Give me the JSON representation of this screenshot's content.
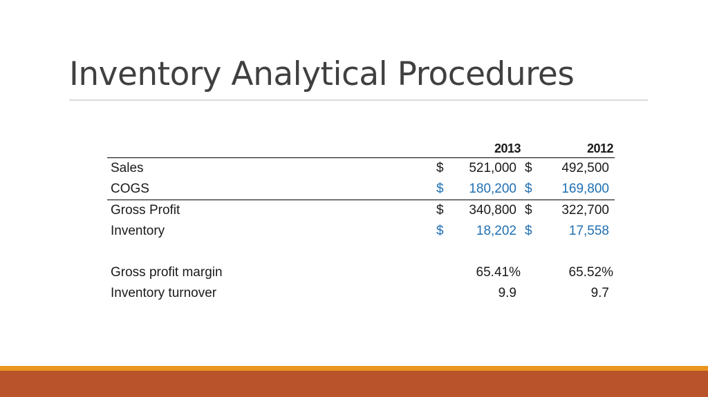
{
  "slide": {
    "title": "Inventory Analytical Procedures"
  },
  "table": {
    "headers": {
      "year1": "2013",
      "year2": "2012"
    },
    "rows": [
      {
        "label": "Sales",
        "d1": "$",
        "v1": "521,000",
        "d2": "$",
        "v2": "492,500"
      },
      {
        "label": "COGS",
        "d1": "$",
        "v1": "180,200",
        "d2": "$",
        "v2": "169,800"
      },
      {
        "label": "Gross Profit",
        "d1": "$",
        "v1": "340,800",
        "d2": "$",
        "v2": "322,700"
      },
      {
        "label": "Inventory",
        "d1": "$",
        "v1": "18,202",
        "d2": "$",
        "v2": "17,558"
      }
    ],
    "ratios": [
      {
        "label": "Gross profit margin",
        "v1": "65.41%",
        "v2": "65.52%"
      },
      {
        "label": "Inventory turnover",
        "v1": "9.9",
        "v2": "9.7"
      }
    ]
  },
  "colors": {
    "title": "#404040",
    "highlight_blue": "#1f6fb2",
    "band_orange": "#e9951f",
    "band_rust": "#b8532b"
  }
}
